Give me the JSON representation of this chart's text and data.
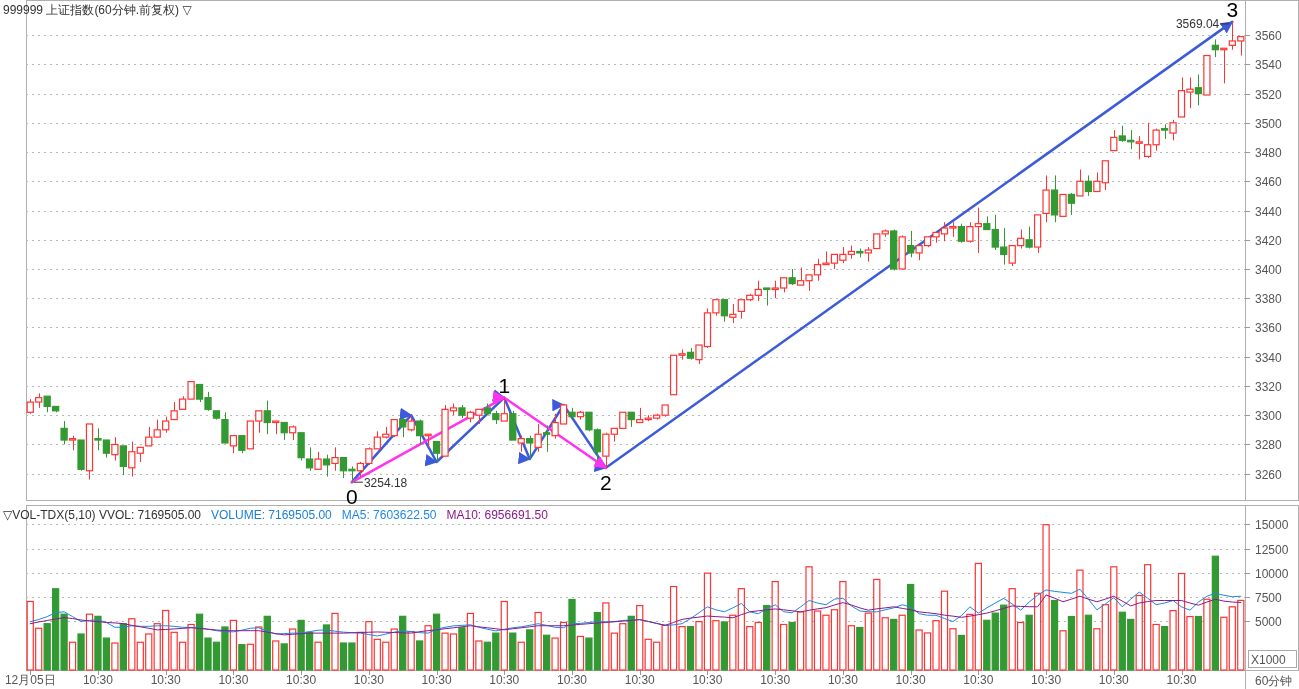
{
  "chart_data": [
    {
      "type": "candlestick",
      "title": "999999 上证指数(60分钟.前复权) ▽",
      "categories": [
        null,
        null,
        null,
        null,
        null,
        null,
        null,
        null,
        null,
        null,
        null,
        null,
        null,
        null,
        null,
        null,
        null,
        null,
        null,
        null,
        null,
        null,
        null,
        null,
        null,
        null,
        null,
        null,
        null,
        null,
        null,
        null,
        null,
        null,
        null,
        null,
        null,
        null,
        null,
        null,
        null,
        null,
        null,
        null,
        null,
        null,
        null,
        null,
        null,
        null,
        null,
        null,
        null,
        null,
        null,
        null,
        null,
        null,
        null,
        null,
        null,
        null,
        null,
        null,
        null,
        null,
        null,
        null,
        null,
        null,
        null,
        null,
        null,
        null,
        null,
        null,
        null,
        null,
        null,
        null,
        null,
        null,
        null,
        null,
        null,
        null,
        null,
        null,
        null,
        null,
        null,
        null,
        null,
        null,
        null,
        null,
        null,
        null,
        null,
        null,
        null,
        null,
        null,
        null,
        null,
        null,
        null,
        null,
        null,
        null,
        null,
        null,
        null,
        null,
        null,
        null,
        null,
        null,
        null,
        null,
        null,
        null,
        null,
        null,
        null,
        null,
        null,
        null,
        null,
        null,
        null,
        null,
        null,
        null,
        null,
        null,
        null,
        null,
        null,
        null,
        null,
        null,
        null,
        null
      ],
      "ohlc": [
        [
          3302,
          3311,
          3301,
          3309
        ],
        [
          3309,
          3315,
          3305,
          3312
        ],
        [
          3313,
          3313,
          3302,
          3306
        ],
        [
          3306,
          3306,
          3302,
          3303
        ],
        [
          3291,
          3296,
          3280,
          3283
        ],
        [
          3283,
          3286,
          3276,
          3284
        ],
        [
          3283,
          3283,
          3262,
          3263
        ],
        [
          3262,
          3294,
          3256,
          3294
        ],
        [
          3284,
          3291,
          3276,
          3283
        ],
        [
          3283,
          3283,
          3271,
          3274
        ],
        [
          3273,
          3285,
          3269,
          3280
        ],
        [
          3279,
          3279,
          3259,
          3265
        ],
        [
          3264,
          3282,
          3258,
          3275
        ],
        [
          3274,
          3278,
          3268,
          3278
        ],
        [
          3279,
          3292,
          3279,
          3285
        ],
        [
          3285,
          3297,
          3285,
          3290
        ],
        [
          3290,
          3299,
          3288,
          3296
        ],
        [
          3297,
          3309,
          3297,
          3303
        ],
        [
          3304,
          3313,
          3304,
          3311
        ],
        [
          3311,
          3323,
          3311,
          3323
        ],
        [
          3321,
          3321,
          3309,
          3311
        ],
        [
          3312,
          3316,
          3303,
          3304
        ],
        [
          3303,
          3303,
          3297,
          3298
        ],
        [
          3297,
          3302,
          3281,
          3281
        ],
        [
          3279,
          3286,
          3274,
          3286
        ],
        [
          3286,
          3286,
          3274,
          3276
        ],
        [
          3277,
          3296,
          3277,
          3296
        ],
        [
          3296,
          3303,
          3288,
          3303
        ],
        [
          3303,
          3310,
          3287,
          3295
        ],
        [
          3295,
          3296,
          3287,
          3296
        ],
        [
          3295,
          3295,
          3283,
          3288
        ],
        [
          3288,
          3293,
          3283,
          3292
        ],
        [
          3288,
          3288,
          3269,
          3271
        ],
        [
          3270,
          3278,
          3262,
          3264
        ],
        [
          3263,
          3275,
          3263,
          3270
        ],
        [
          3270,
          3273,
          3258,
          3266
        ],
        [
          3267,
          3278,
          3262,
          3271
        ],
        [
          3271,
          3271,
          3257,
          3262
        ],
        [
          3263,
          3265,
          3254.18,
          3262
        ],
        [
          3262,
          3268,
          3258,
          3267
        ],
        [
          3267,
          3278,
          3266,
          3277
        ],
        [
          3277,
          3289,
          3277,
          3285
        ],
        [
          3285,
          3292,
          3284,
          3287
        ],
        [
          3286,
          3297,
          3285,
          3297
        ],
        [
          3297,
          3298,
          3285,
          3292
        ],
        [
          3290,
          3300,
          3289,
          3296
        ],
        [
          3296,
          3297,
          3280,
          3286
        ],
        [
          3286,
          3287,
          3278,
          3287
        ],
        [
          3282,
          3282,
          3268,
          3274
        ],
        [
          3272,
          3307,
          3272,
          3304
        ],
        [
          3303,
          3308,
          3300,
          3305
        ],
        [
          3305,
          3307,
          3298,
          3300
        ],
        [
          3298,
          3303,
          3295,
          3302
        ],
        [
          3300,
          3304,
          3294,
          3304
        ],
        [
          3305,
          3308,
          3300,
          3301
        ],
        [
          3301,
          3303,
          3294,
          3297
        ],
        [
          3296,
          3312,
          3296,
          3301
        ],
        [
          3301,
          3303,
          3283,
          3283
        ],
        [
          3281,
          3286,
          3275,
          3284
        ],
        [
          3284,
          3286,
          3270,
          3281
        ],
        [
          3278,
          3294,
          3275,
          3287
        ],
        [
          3288,
          3293,
          3275,
          3287
        ],
        [
          3286,
          3301,
          3284,
          3295
        ],
        [
          3294,
          3307,
          3294,
          3307
        ],
        [
          3302,
          3305,
          3299,
          3299
        ],
        [
          3299,
          3303,
          3297,
          3302
        ],
        [
          3302,
          3302,
          3289,
          3290
        ],
        [
          3290,
          3291,
          3269,
          3275
        ],
        [
          3272,
          3288,
          3264,
          3287
        ],
        [
          3287,
          3291,
          3282,
          3291
        ],
        [
          3291,
          3302,
          3291,
          3302
        ],
        [
          3302,
          3302,
          3292,
          3297
        ],
        [
          3295,
          3305,
          3295,
          3297
        ],
        [
          3297,
          3300,
          3296,
          3298
        ],
        [
          3298,
          3301,
          3297,
          3300
        ],
        [
          3300,
          3307,
          3299,
          3307
        ],
        [
          3314,
          3341,
          3314,
          3341
        ],
        [
          3341,
          3345,
          3338,
          3342
        ],
        [
          3343,
          3346,
          3338,
          3339
        ],
        [
          3338,
          3348,
          3335,
          3348
        ],
        [
          3347,
          3373,
          3346,
          3370
        ],
        [
          3370,
          3379,
          3368,
          3379
        ],
        [
          3379,
          3379,
          3364,
          3368
        ],
        [
          3367,
          3376,
          3363,
          3369
        ],
        [
          3371,
          3379,
          3366,
          3379
        ],
        [
          3379,
          3383,
          3378,
          3382
        ],
        [
          3382,
          3392,
          3378,
          3386
        ],
        [
          3387,
          3387,
          3375,
          3386
        ],
        [
          3386,
          3392,
          3380,
          3387
        ],
        [
          3387,
          3394,
          3384,
          3394
        ],
        [
          3394,
          3400,
          3389,
          3390
        ],
        [
          3389,
          3401,
          3389,
          3392
        ],
        [
          3392,
          3396,
          3385,
          3396
        ],
        [
          3396,
          3407,
          3392,
          3403
        ],
        [
          3403,
          3412,
          3403,
          3404
        ],
        [
          3404,
          3410,
          3400,
          3410
        ],
        [
          3406,
          3415,
          3404,
          3410
        ],
        [
          3410,
          3416,
          3407,
          3412
        ],
        [
          3412,
          3414,
          3408,
          3411
        ],
        [
          3411,
          3415,
          3405,
          3413
        ],
        [
          3414,
          3424,
          3414,
          3424
        ],
        [
          3424,
          3427,
          3422,
          3426
        ],
        [
          3426,
          3427,
          3399,
          3400
        ],
        [
          3400,
          3423,
          3400,
          3422
        ],
        [
          3416,
          3426,
          3408,
          3411
        ],
        [
          3411,
          3416,
          3406,
          3416
        ],
        [
          3416,
          3422,
          3415,
          3422
        ],
        [
          3422,
          3425,
          3418,
          3425
        ],
        [
          3424,
          3432,
          3419,
          3428
        ],
        [
          3428,
          3432,
          3422,
          3429
        ],
        [
          3429,
          3431,
          3418,
          3419
        ],
        [
          3419,
          3432,
          3418,
          3429
        ],
        [
          3429,
          3442,
          3411,
          3431
        ],
        [
          3431,
          3436,
          3427,
          3427
        ],
        [
          3427,
          3437,
          3413,
          3415
        ],
        [
          3415,
          3428,
          3403,
          3410
        ],
        [
          3404,
          3416,
          3402,
          3416
        ],
        [
          3416,
          3427,
          3414,
          3421
        ],
        [
          3420,
          3429,
          3414,
          3415
        ],
        [
          3415,
          3437,
          3411,
          3437
        ],
        [
          3438,
          3464,
          3432,
          3454
        ],
        [
          3454,
          3464,
          3432,
          3437
        ],
        [
          3436,
          3451,
          3436,
          3451
        ],
        [
          3451,
          3452,
          3437,
          3445
        ],
        [
          3450,
          3468,
          3450,
          3460
        ],
        [
          3460,
          3464,
          3450,
          3453
        ],
        [
          3453,
          3466,
          3453,
          3460
        ],
        [
          3459,
          3474,
          3454,
          3474
        ],
        [
          3481,
          3495,
          3481,
          3490
        ],
        [
          3491,
          3498,
          3487,
          3488
        ],
        [
          3488,
          3495,
          3482,
          3487
        ],
        [
          3486,
          3491,
          3475,
          3487
        ],
        [
          3477,
          3500,
          3476,
          3485
        ],
        [
          3485,
          3496,
          3481,
          3495
        ],
        [
          3496,
          3499,
          3489,
          3495
        ],
        [
          3493,
          3502,
          3488,
          3500
        ],
        [
          3504,
          3531,
          3504,
          3522
        ],
        [
          3521,
          3531,
          3510,
          3523
        ],
        [
          3524,
          3533,
          3512,
          3520
        ],
        [
          3519,
          3546,
          3519,
          3546
        ],
        [
          3553,
          3557,
          3545,
          3550
        ],
        [
          3550,
          3551,
          3527,
          3551
        ],
        [
          3553,
          3569.04,
          3550,
          3556
        ],
        [
          3556,
          3559,
          3546,
          3559
        ]
      ],
      "colors": [
        "#ff3333",
        "#ff3333",
        "#339933",
        "#339933",
        "#339933",
        "#ff3333",
        "#339933",
        "#ff3333",
        "#339933",
        "#339933",
        "#ff3333",
        "#339933",
        "#ff3333",
        "#ff3333",
        "#ff3333",
        "#ff3333",
        "#ff3333",
        "#ff3333",
        "#ff3333",
        "#ff3333",
        "#339933",
        "#339933",
        "#339933",
        "#339933",
        "#ff3333",
        "#339933",
        "#ff3333",
        "#ff3333",
        "#339933",
        "#ff3333",
        "#339933",
        "#ff3333",
        "#339933",
        "#339933",
        "#ff3333",
        "#339933",
        "#ff3333",
        "#339933",
        "#339933",
        "#ff3333",
        "#ff3333",
        "#ff3333",
        "#ff3333",
        "#ff3333",
        "#339933",
        "#ff3333",
        "#339933",
        "#ff3333",
        "#339933",
        "#ff3333",
        "#ff3333",
        "#339933",
        "#ff3333",
        "#ff3333",
        "#339933",
        "#339933",
        "#ff3333",
        "#339933",
        "#ff3333",
        "#339933",
        "#ff3333",
        "#339933",
        "#ff3333",
        "#ff3333",
        "#339933",
        "#ff3333",
        "#339933",
        "#339933",
        "#ff3333",
        "#ff3333",
        "#ff3333",
        "#339933",
        "#ff3333",
        "#ff3333",
        "#ff3333",
        "#ff3333",
        "#ff3333",
        "#ff3333",
        "#339933",
        "#ff3333",
        "#ff3333",
        "#ff3333",
        "#339933",
        "#ff3333",
        "#ff3333",
        "#ff3333",
        "#ff3333",
        "#339933",
        "#ff3333",
        "#ff3333",
        "#339933",
        "#ff3333",
        "#ff3333",
        "#ff3333",
        "#ff3333",
        "#ff3333",
        "#ff3333",
        "#ff3333",
        "#339933",
        "#ff3333",
        "#ff3333",
        "#ff3333",
        "#339933",
        "#ff3333",
        "#339933",
        "#ff3333",
        "#ff3333",
        "#ff3333",
        "#ff3333",
        "#ff3333",
        "#339933",
        "#ff3333",
        "#ff3333",
        "#339933",
        "#339933",
        "#339933",
        "#ff3333",
        "#ff3333",
        "#339933",
        "#ff3333",
        "#ff3333",
        "#339933",
        "#ff3333",
        "#339933",
        "#ff3333",
        "#339933",
        "#ff3333",
        "#ff3333",
        "#ff3333",
        "#339933",
        "#339933",
        "#ff3333",
        "#ff3333",
        "#ff3333",
        "#339933",
        "#ff3333",
        "#ff3333",
        "#ff3333",
        "#339933",
        "#ff3333",
        "#339933",
        "#ff3333",
        "#ff3333",
        "#ff3333"
      ],
      "series": [
        {
          "type": "line",
          "color": "#3b5bdb",
          "values": [
            null,
            null,
            null,
            null,
            null,
            null,
            null,
            null,
            null,
            null,
            null,
            null,
            null,
            null,
            null,
            null,
            null,
            null,
            null,
            null,
            null,
            null,
            null,
            null,
            null,
            null,
            null,
            null,
            null,
            null,
            null,
            null,
            null,
            null,
            null,
            null,
            null,
            null,
            3254.18,
            null,
            null,
            null,
            null,
            null,
            null,
            3300,
            null,
            null,
            3268,
            null,
            null,
            null,
            null,
            null,
            null,
            null,
            3312,
            null,
            null,
            3270,
            null,
            null,
            null,
            3307,
            null,
            null,
            null,
            null,
            3264,
            null,
            null,
            null,
            null,
            null,
            null,
            null,
            null,
            null,
            null,
            null,
            null,
            null,
            null,
            null,
            null,
            null,
            null,
            null,
            null,
            null,
            null,
            null,
            null,
            null,
            null,
            null,
            null,
            null,
            null,
            null,
            null,
            null,
            null,
            null,
            null,
            null,
            null,
            null,
            null,
            null,
            null,
            null,
            null,
            null,
            null,
            null,
            null,
            null,
            null,
            null,
            null,
            null,
            null,
            null,
            null,
            null,
            null,
            null,
            null,
            null,
            null,
            null,
            null,
            null,
            null,
            null,
            null,
            null,
            null,
            null,
            null,
            null,
            3569.04,
            null
          ]
        },
        {
          "type": "line",
          "color": "#ff33ee",
          "values": [
            null,
            null,
            null,
            null,
            null,
            null,
            null,
            null,
            null,
            null,
            null,
            null,
            null,
            null,
            null,
            null,
            null,
            null,
            null,
            null,
            null,
            null,
            null,
            null,
            null,
            null,
            null,
            null,
            null,
            null,
            null,
            null,
            null,
            null,
            null,
            null,
            null,
            null,
            3254.18,
            null,
            null,
            null,
            null,
            null,
            null,
            null,
            null,
            null,
            null,
            null,
            null,
            null,
            null,
            null,
            null,
            null,
            3312,
            null,
            null,
            null,
            null,
            null,
            null,
            null,
            null,
            null,
            null,
            null,
            3264,
            null,
            null,
            null,
            null,
            null,
            null,
            null,
            null,
            null,
            null,
            null,
            null,
            null,
            null,
            null,
            null,
            null,
            null,
            null,
            null,
            null,
            null,
            null,
            null,
            null,
            null,
            null,
            null,
            null,
            null,
            null,
            null,
            null,
            null,
            null,
            null,
            null,
            null,
            null,
            null,
            null,
            null,
            null,
            null,
            null,
            null,
            null,
            null,
            null,
            null,
            null,
            null,
            null,
            null,
            null,
            null,
            null,
            null,
            null,
            null,
            null,
            null,
            null,
            null,
            null,
            null,
            null,
            null,
            null,
            null,
            null,
            null,
            null,
            null,
            null
          ]
        }
      ],
      "ylim": [
        3242,
        3584
      ],
      "yticks": [
        3260,
        3280,
        3300,
        3320,
        3340,
        3360,
        3380,
        3400,
        3420,
        3440,
        3460,
        3480,
        3500,
        3520,
        3540,
        3560
      ],
      "grid": "y",
      "tick_labels": "y",
      "annotations": [
        "0",
        "3254.18",
        "1",
        "2",
        "3",
        "3569.04"
      ]
    },
    {
      "type": "bar",
      "title": "▽VOL-TDX(5,10) VVOL: 7169505.00",
      "xlabel": "60分钟",
      "categories": [
        "12月05日",
        null,
        null,
        null,
        null,
        null,
        null,
        null,
        "10:30",
        null,
        null,
        null,
        null,
        null,
        null,
        null,
        "10:30",
        null,
        null,
        null,
        null,
        null,
        null,
        null,
        "10:30",
        null,
        null,
        null,
        null,
        null,
        null,
        null,
        "10:30",
        null,
        null,
        null,
        null,
        null,
        null,
        null,
        "10:30",
        null,
        null,
        null,
        null,
        null,
        null,
        null,
        "10:30",
        null,
        null,
        null,
        null,
        null,
        null,
        null,
        "10:30",
        null,
        null,
        null,
        null,
        null,
        null,
        null,
        "10:30",
        null,
        null,
        null,
        null,
        null,
        null,
        null,
        "10:30",
        null,
        null,
        null,
        null,
        null,
        null,
        null,
        "10:30",
        null,
        null,
        null,
        null,
        null,
        null,
        null,
        "10:30",
        null,
        null,
        null,
        null,
        null,
        null,
        null,
        "10:30",
        null,
        null,
        null,
        null,
        null,
        null,
        null,
        "10:30",
        null,
        null,
        null,
        null,
        null,
        null,
        null,
        "10:30",
        null,
        null,
        null,
        null,
        null,
        null,
        null,
        "10:30",
        null,
        null,
        null,
        null,
        null,
        null,
        null,
        "10:30",
        null,
        null,
        null,
        null,
        null,
        null,
        null,
        "10:30",
        null,
        null,
        null,
        null,
        null,
        null,
        null
      ],
      "series": [
        {
          "color": "#1a7fd6",
          "values": [
            7060,
            4300,
            4770,
            8370,
            5750,
            2860,
            3710,
            5750,
            5530,
            3290,
            2780,
            4770,
            5280,
            2860,
            3710,
            4770,
            6130,
            3880,
            2860,
            4690,
            5750,
            3290,
            2860,
            4430,
            5110,
            2610,
            2650,
            4430,
            5530,
            2990,
            2690,
            4220,
            5110,
            3880,
            2860,
            4640,
            5830,
            2780,
            2780,
            3880,
            4980,
            3160,
            2860,
            4220,
            5530,
            3960,
            2990,
            4560,
            5750,
            3800,
            3710,
            4350,
            5830,
            2990,
            2860,
            3800,
            7060,
            3800,
            2860,
            4130,
            5920,
            3580,
            3290,
            4900,
            7270,
            3460,
            3290,
            5920,
            6910,
            3800,
            4770,
            5530,
            6640,
            3160,
            2860,
            4600,
            8600,
            4470,
            4470,
            4990,
            9980,
            5080,
            4950,
            5640,
            8380,
            4470,
            4900,
            6640,
            9110,
            4690,
            4900,
            5990,
            10630,
            6080,
            5640,
            6210,
            9110,
            4560,
            4380,
            5860,
            9330,
            5380,
            5210,
            5640,
            8810,
            4120,
            3820,
            5080,
            8120,
            4250,
            3560,
            5730,
            10980,
            5120,
            5860,
            6680,
            8380,
            4900,
            5640,
            7900,
            14970,
            7160,
            4040,
            5510,
            10290,
            5640,
            4250,
            6730,
            10630,
            5950,
            5210,
            7680,
            10850,
            4690,
            4470,
            6120,
            9940,
            5510,
            5510,
            7290,
            11720,
            5430,
            6510,
            7170
          ],
          "colors": [
            "#ff3333",
            "#ff3333",
            "#339933",
            "#339933",
            "#339933",
            "#ff3333",
            "#339933",
            "#ff3333",
            "#339933",
            "#339933",
            "#ff3333",
            "#339933",
            "#ff3333",
            "#ff3333",
            "#ff3333",
            "#ff3333",
            "#ff3333",
            "#ff3333",
            "#ff3333",
            "#ff3333",
            "#339933",
            "#339933",
            "#339933",
            "#339933",
            "#ff3333",
            "#339933",
            "#ff3333",
            "#ff3333",
            "#339933",
            "#ff3333",
            "#339933",
            "#ff3333",
            "#339933",
            "#339933",
            "#ff3333",
            "#339933",
            "#ff3333",
            "#339933",
            "#339933",
            "#ff3333",
            "#ff3333",
            "#ff3333",
            "#ff3333",
            "#ff3333",
            "#339933",
            "#ff3333",
            "#339933",
            "#ff3333",
            "#339933",
            "#ff3333",
            "#ff3333",
            "#339933",
            "#ff3333",
            "#ff3333",
            "#339933",
            "#339933",
            "#ff3333",
            "#339933",
            "#ff3333",
            "#339933",
            "#ff3333",
            "#339933",
            "#ff3333",
            "#ff3333",
            "#339933",
            "#ff3333",
            "#339933",
            "#339933",
            "#ff3333",
            "#ff3333",
            "#ff3333",
            "#339933",
            "#ff3333",
            "#ff3333",
            "#ff3333",
            "#ff3333",
            "#ff3333",
            "#ff3333",
            "#339933",
            "#ff3333",
            "#ff3333",
            "#ff3333",
            "#339933",
            "#ff3333",
            "#ff3333",
            "#ff3333",
            "#ff3333",
            "#339933",
            "#ff3333",
            "#ff3333",
            "#339933",
            "#ff3333",
            "#ff3333",
            "#ff3333",
            "#ff3333",
            "#ff3333",
            "#ff3333",
            "#ff3333",
            "#339933",
            "#ff3333",
            "#ff3333",
            "#ff3333",
            "#339933",
            "#ff3333",
            "#339933",
            "#ff3333",
            "#ff3333",
            "#ff3333",
            "#ff3333",
            "#ff3333",
            "#339933",
            "#ff3333",
            "#ff3333",
            "#339933",
            "#339933",
            "#339933",
            "#ff3333",
            "#ff3333",
            "#339933",
            "#ff3333",
            "#ff3333",
            "#339933",
            "#ff3333",
            "#339933",
            "#ff3333",
            "#339933",
            "#ff3333",
            "#ff3333",
            "#ff3333",
            "#339933",
            "#339933",
            "#ff3333",
            "#ff3333",
            "#ff3333",
            "#339933",
            "#ff3333",
            "#ff3333",
            "#ff3333",
            "#339933",
            "#ff3333",
            "#339933",
            "#ff3333",
            "#ff3333",
            "#ff3333"
          ]
        },
        {
          "name": "MA5: 7603622.50",
          "type": "line",
          "color": "#1e88e5",
          "values": [
            4980,
            5200,
            5500,
            5900,
            6000,
            5500,
            5000,
            5100,
            5190,
            4900,
            4400,
            4400,
            4560,
            4500,
            4500,
            4550,
            4560,
            4500,
            4400,
            4380,
            4350,
            4200,
            4050,
            3950,
            3930,
            4100,
            4300,
            4350,
            4000,
            3710,
            3750,
            3800,
            3800,
            3950,
            4100,
            4130,
            4000,
            3900,
            3850,
            3800,
            3650,
            3500,
            3700,
            3900,
            4050,
            3950,
            3850,
            3800,
            4200,
            4400,
            4550,
            4600,
            4660,
            4400,
            4200,
            4030,
            4200,
            4350,
            4450,
            4600,
            4770,
            4600,
            4400,
            4350,
            4770,
            4800,
            4900,
            4980,
            4980,
            4980,
            5100,
            5150,
            5190,
            5000,
            4800,
            4600,
            4650,
            4770,
            5300,
            5900,
            6510,
            6200,
            6000,
            6400,
            6860,
            6000,
            5800,
            6300,
            6720,
            6000,
            5900,
            6500,
            7160,
            6900,
            6720,
            7300,
            7400,
            6600,
            6080,
            6000,
            5990,
            6200,
            6400,
            6720,
            6500,
            5800,
            5640,
            5640,
            5300,
            4990,
            5600,
            6510,
            5860,
            6400,
            6900,
            7380,
            6800,
            6160,
            7000,
            7700,
            8250,
            8100,
            8000,
            7900,
            8330,
            7300,
            6200,
            6800,
            7460,
            6510,
            7300,
            8030,
            7400,
            6730,
            6900,
            7160,
            6500,
            6160,
            7000,
            7600,
            7900,
            7700,
            7550,
            7604
          ]
        },
        {
          "name": "MA10: 6956691.50",
          "type": "line",
          "color": "#8b1a8b",
          "values": [
            4770,
            4950,
            5100,
            5250,
            5400,
            5300,
            5150,
            5050,
            4980,
            4900,
            4850,
            4770,
            4600,
            4450,
            4300,
            4130,
            4180,
            4230,
            4290,
            4350,
            4280,
            4200,
            4120,
            4050,
            4050,
            4050,
            4050,
            4050,
            3900,
            3750,
            3620,
            3680,
            3740,
            3800,
            3800,
            3800,
            3800,
            3800,
            3830,
            3860,
            3890,
            3920,
            3890,
            3860,
            3830,
            3800,
            3950,
            4050,
            4140,
            4250,
            4350,
            4450,
            4560,
            4450,
            4350,
            4250,
            4140,
            4250,
            4350,
            4450,
            4560,
            4560,
            4560,
            4560,
            4630,
            4700,
            4770,
            4840,
            4900,
            4970,
            5040,
            5110,
            5190,
            5000,
            4800,
            4600,
            4900,
            5210,
            5350,
            5450,
            5560,
            5500,
            5450,
            5380,
            5700,
            5990,
            6100,
            6200,
            6290,
            6200,
            6100,
            5990,
            6150,
            6300,
            6420,
            6700,
            6940,
            6700,
            6400,
            6160,
            6300,
            6400,
            6510,
            6350,
            6200,
            5990,
            5900,
            5800,
            5650,
            5550,
            5430,
            5550,
            5700,
            5860,
            6100,
            6350,
            6600,
            6550,
            6520,
            6510,
            7730,
            7400,
            7030,
            7300,
            7600,
            7300,
            7030,
            7300,
            7600,
            7100,
            6600,
            6900,
            7050,
            7160,
            7160,
            7160,
            7160,
            6900,
            6680,
            7000,
            7290,
            7100,
            7000,
            6957
          ]
        }
      ],
      "ylim": [
        0,
        17000
      ],
      "yticks": [
        5000,
        7500,
        10000,
        12500,
        15000
      ],
      "grid": "y",
      "legend": "top left",
      "annotations": [
        "VOLUME: 7169505.00",
        "X1000"
      ]
    }
  ]
}
